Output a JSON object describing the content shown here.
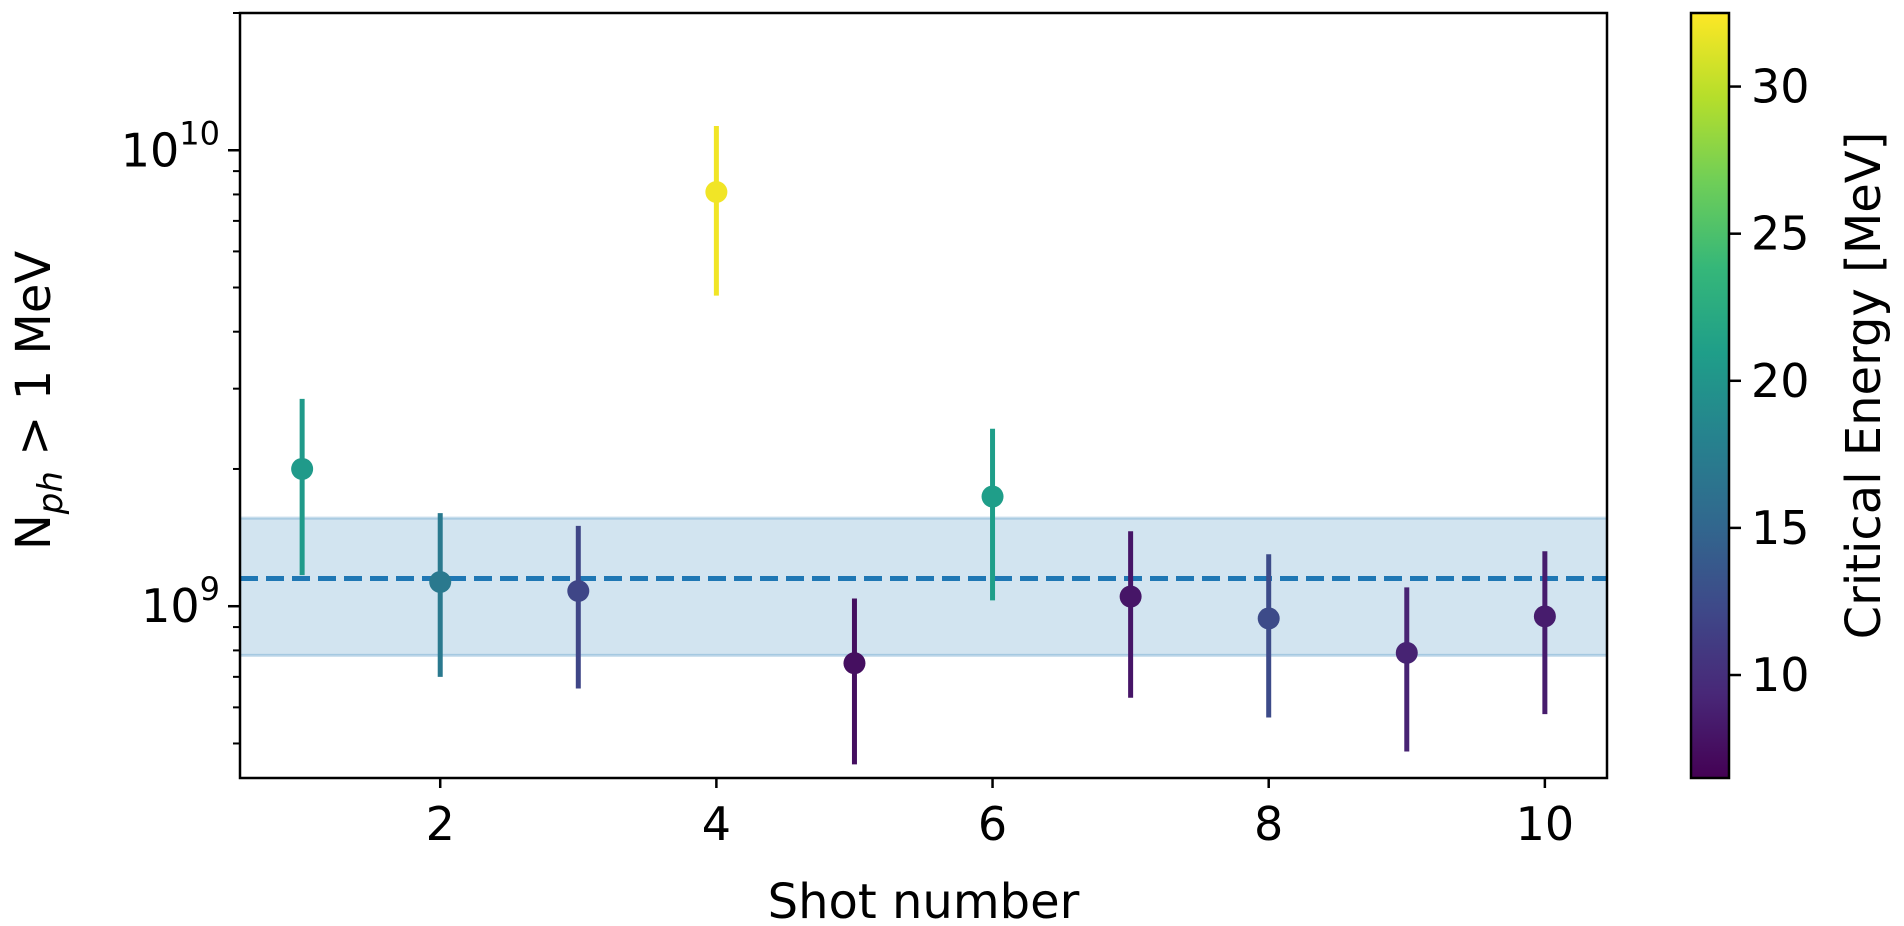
{
  "chart_data": {
    "type": "scatter",
    "title": "",
    "xlabel": "Shot number",
    "ylabel": {
      "main": "N",
      "subscript": "ph",
      "suffix": " > 1 MeV"
    },
    "yscale": "log",
    "xlim": [
      0.55,
      10.45
    ],
    "ylim": [
      420000000.0,
      20000000000.0
    ],
    "x_ticks": [
      {
        "value": 2,
        "label": "2"
      },
      {
        "value": 4,
        "label": "4"
      },
      {
        "value": 6,
        "label": "6"
      },
      {
        "value": 8,
        "label": "8"
      },
      {
        "value": 10,
        "label": "10"
      }
    ],
    "y_ticks": [
      {
        "value": 1000000000.0,
        "base": "10",
        "exp": "9"
      },
      {
        "value": 10000000000.0,
        "base": "10",
        "exp": "10"
      }
    ],
    "points": [
      {
        "shot": 1,
        "value": 2000000000.0,
        "err_low": 1170000000.0,
        "err_high": 2850000000.0,
        "critical_energy": 20.5
      },
      {
        "shot": 2,
        "value": 1130000000.0,
        "err_low": 700000000.0,
        "err_high": 1600000000.0,
        "critical_energy": 17.0
      },
      {
        "shot": 3,
        "value": 1080000000.0,
        "err_low": 660000000.0,
        "err_high": 1500000000.0,
        "critical_energy": 12.0
      },
      {
        "shot": 4,
        "value": 8100000000.0,
        "err_low": 4800000000.0,
        "err_high": 11300000000.0,
        "critical_energy": 32.0
      },
      {
        "shot": 5,
        "value": 750000000.0,
        "err_low": 450000000.0,
        "err_high": 1040000000.0,
        "critical_energy": 7.5
      },
      {
        "shot": 6,
        "value": 1740000000.0,
        "err_low": 1030000000.0,
        "err_high": 2450000000.0,
        "critical_energy": 21.0
      },
      {
        "shot": 7,
        "value": 1050000000.0,
        "err_low": 630000000.0,
        "err_high": 1460000000.0,
        "critical_energy": 8.0
      },
      {
        "shot": 8,
        "value": 940000000.0,
        "err_low": 570000000.0,
        "err_high": 1300000000.0,
        "critical_energy": 12.5
      },
      {
        "shot": 9,
        "value": 790000000.0,
        "err_low": 480000000.0,
        "err_high": 1100000000.0,
        "critical_energy": 9.0
      },
      {
        "shot": 10,
        "value": 950000000.0,
        "err_low": 580000000.0,
        "err_high": 1320000000.0,
        "critical_energy": 8.5
      }
    ],
    "mean_line": {
      "value": 1150000000.0,
      "color": "#1f77b4",
      "style": "dashed"
    },
    "band": {
      "low": 780000000.0,
      "high": 1560000000.0,
      "color": "#1f77b4",
      "opacity": 0.2
    },
    "colorbar": {
      "label": "Critical Energy [MeV]",
      "min": 6.5,
      "max": 32.5,
      "ticks": [
        "10",
        "15",
        "20",
        "25",
        "30"
      ],
      "colormap": "viridis",
      "stops": [
        "#440154",
        "#482878",
        "#3e4989",
        "#31688e",
        "#26828e",
        "#1f9e89",
        "#35b779",
        "#6ece58",
        "#b5de2b",
        "#fde725"
      ]
    }
  }
}
